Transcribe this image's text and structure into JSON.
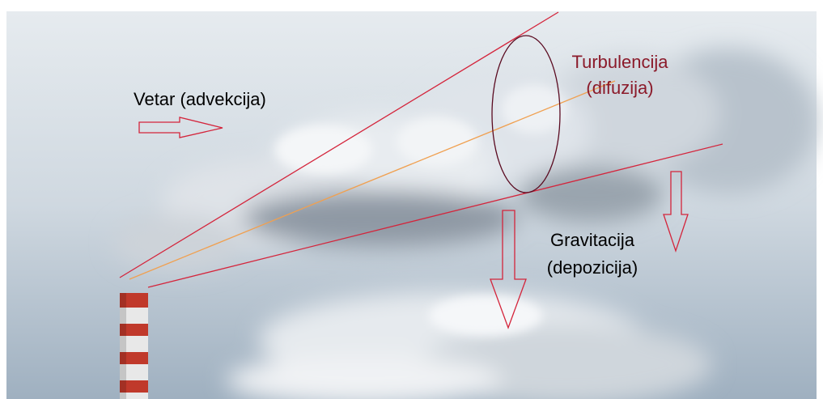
{
  "labels": {
    "wind": "Vetar (advekcija)",
    "turbulence": [
      "Turbulencija",
      "(difuzija)"
    ],
    "gravity": [
      "Gravitacija",
      "(depozicija)"
    ]
  }
}
